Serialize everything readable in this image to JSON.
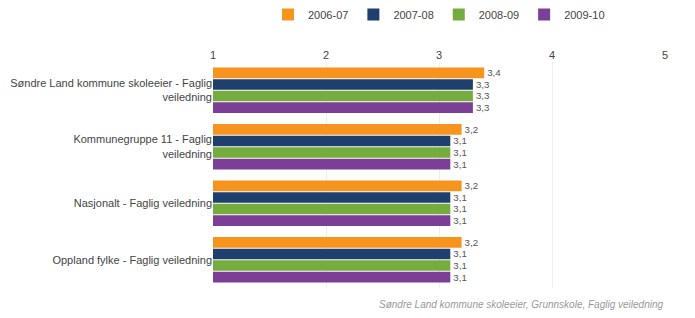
{
  "chart_data": {
    "type": "bar",
    "orientation": "horizontal",
    "categories": [
      "Søndre Land kommune skoleeier - Faglig\nveiledning",
      "Kommunegruppe 11 - Faglig\nveiledning",
      "Nasjonalt - Faglig veiledning",
      "Oppland fylke - Faglig veiledning"
    ],
    "series": [
      {
        "name": "2006-07",
        "color": "#F7941D",
        "values": [
          3.4,
          3.2,
          3.2,
          3.2
        ],
        "value_labels": [
          "3,4",
          "3,2",
          "3,2",
          "3,2"
        ]
      },
      {
        "name": "2007-08",
        "color": "#1F3F6E",
        "values": [
          3.3,
          3.1,
          3.1,
          3.1
        ],
        "value_labels": [
          "3,3",
          "3,1",
          "3,1",
          "3,1"
        ]
      },
      {
        "name": "2008-09",
        "color": "#76AC3D",
        "values": [
          3.3,
          3.1,
          3.1,
          3.1
        ],
        "value_labels": [
          "3,3",
          "3,1",
          "3,1",
          "3,1"
        ]
      },
      {
        "name": "2009-10",
        "color": "#7B3F96",
        "values": [
          3.3,
          3.1,
          3.1,
          3.1
        ],
        "value_labels": [
          "3,3",
          "3,1",
          "3,1",
          "3,1"
        ]
      }
    ],
    "xlim": [
      1,
      5
    ],
    "xticks": [
      1,
      2,
      3,
      4,
      5
    ],
    "grid": true,
    "data_labels": true,
    "legend": "top",
    "annotations": [
      "Søndre Land kommune skoleeier, Grunnskole, Faglig veiledning"
    ]
  }
}
